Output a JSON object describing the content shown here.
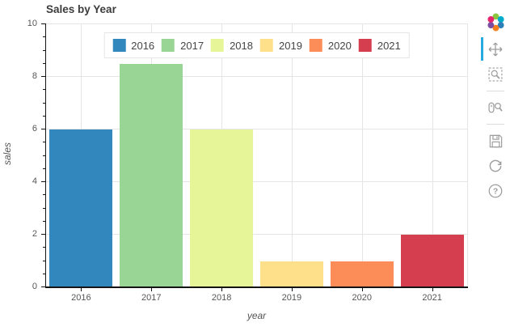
{
  "chart_data": {
    "type": "bar",
    "title": "Sales by Year",
    "categories": [
      "2016",
      "2017",
      "2018",
      "2019",
      "2020",
      "2021"
    ],
    "values": [
      6,
      8.5,
      6,
      1,
      1,
      2
    ],
    "bar_colors": [
      "#3288bd",
      "#99d594",
      "#e6f598",
      "#fee08b",
      "#fc8d59",
      "#d53e4f"
    ],
    "xlabel": "year",
    "ylabel": "sales",
    "ylim": [
      0,
      10
    ],
    "yticks": [
      0,
      2,
      4,
      6,
      8,
      10
    ],
    "grid": true,
    "legend": {
      "position": "top-center",
      "entries": [
        "2016",
        "2017",
        "2018",
        "2019",
        "2020",
        "2021"
      ]
    }
  },
  "toolbar": {
    "logo": "bokeh-logo",
    "active_tool": "pan",
    "accent_color": "#26aae1",
    "tools": [
      {
        "name": "pan"
      },
      {
        "name": "box-zoom"
      },
      {
        "name": "wheel-zoom"
      },
      {
        "name": "save"
      },
      {
        "name": "reset"
      },
      {
        "name": "help"
      }
    ]
  },
  "colors": {
    "grid": "#e5e5e5",
    "axis": "#141414",
    "tick_text": "#565656",
    "icon": "#9d9d9d"
  }
}
